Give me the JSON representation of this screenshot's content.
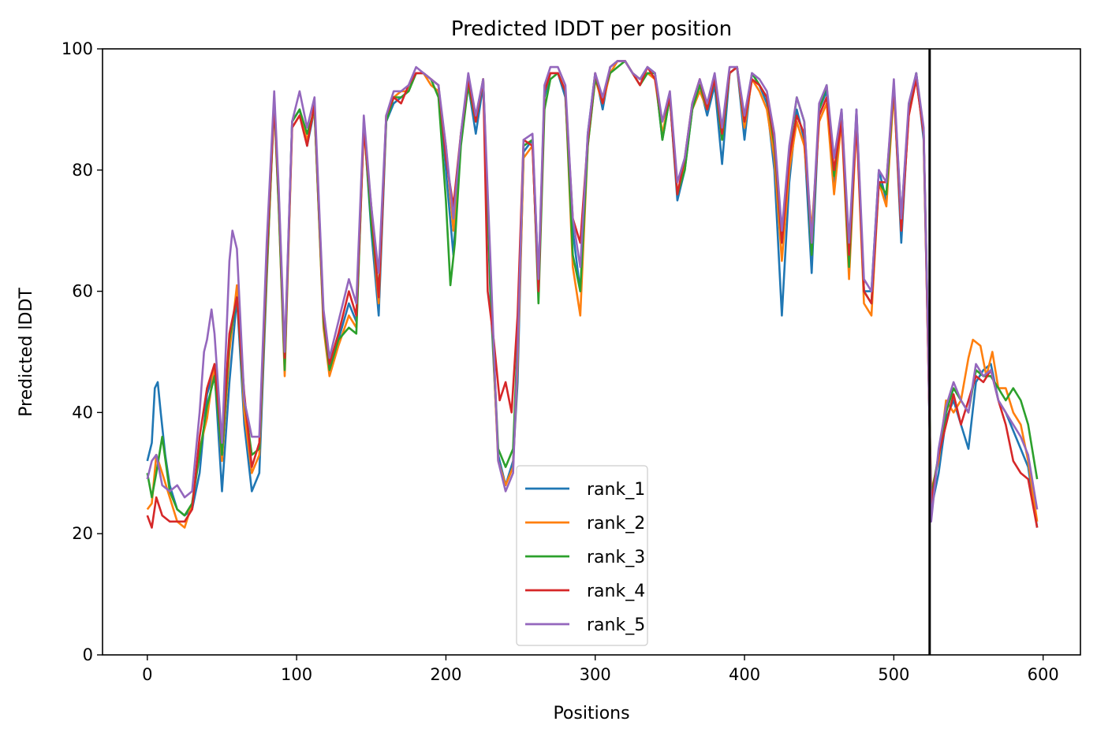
{
  "chart_data": {
    "type": "line",
    "title": "Predicted lDDT per position",
    "xlabel": "Positions",
    "ylabel": "Predicted lDDT",
    "xlim": [
      -30,
      625
    ],
    "ylim": [
      0,
      100
    ],
    "x_ticks": [
      0,
      100,
      200,
      300,
      400,
      500,
      600
    ],
    "y_ticks": [
      0,
      20,
      40,
      60,
      80,
      100
    ],
    "grid": false,
    "legend_position": "bottom-center",
    "vertical_lines": [
      524
    ],
    "series": [
      {
        "name": "rank_1",
        "color": "#1f77b4",
        "x": [
          0,
          3,
          5,
          7,
          9,
          12,
          15,
          20,
          25,
          30,
          35,
          40,
          45,
          50,
          55,
          60,
          65,
          70,
          75,
          80,
          85,
          88,
          92,
          97,
          102,
          107,
          112,
          118,
          122,
          128,
          135,
          140,
          145,
          150,
          155,
          160,
          165,
          170,
          175,
          180,
          185,
          190,
          195,
          200,
          205,
          210,
          215,
          220,
          225,
          230,
          235,
          240,
          245,
          248,
          252,
          258,
          262,
          266,
          270,
          275,
          280,
          285,
          290,
          295,
          300,
          305,
          310,
          315,
          320,
          325,
          330,
          335,
          340,
          345,
          350,
          355,
          360,
          365,
          370,
          375,
          380,
          385,
          390,
          395,
          400,
          405,
          410,
          415,
          420,
          425,
          430,
          435,
          440,
          445,
          450,
          455,
          460,
          465,
          470,
          475,
          480,
          485,
          490,
          495,
          500,
          505,
          510,
          515,
          520,
          523,
          525,
          530,
          535,
          540,
          545,
          550,
          555,
          560,
          565,
          570,
          575,
          580,
          585,
          590,
          596
        ],
        "y": [
          32,
          35,
          44,
          45,
          40,
          33,
          28,
          24,
          23,
          24,
          30,
          43,
          47,
          27,
          45,
          59,
          38,
          27,
          30,
          62,
          92,
          75,
          48,
          88,
          90,
          84,
          90,
          55,
          48,
          52,
          58,
          55,
          88,
          70,
          56,
          88,
          91,
          92,
          93,
          96,
          96,
          95,
          94,
          80,
          66,
          85,
          94,
          86,
          94,
          58,
          33,
          28,
          32,
          45,
          83,
          85,
          62,
          92,
          96,
          96,
          92,
          70,
          60,
          86,
          96,
          90,
          97,
          98,
          98,
          96,
          95,
          97,
          96,
          85,
          92,
          75,
          80,
          90,
          94,
          89,
          94,
          81,
          96,
          97,
          85,
          96,
          94,
          91,
          80,
          56,
          78,
          90,
          85,
          63,
          90,
          93,
          78,
          90,
          65,
          90,
          60,
          60,
          80,
          75,
          94,
          68,
          90,
          96,
          85,
          50,
          24,
          30,
          39,
          42,
          38,
          34,
          45,
          47,
          48,
          42,
          40,
          37,
          34,
          31,
          21
        ]
      },
      {
        "name": "rank_2",
        "color": "#ff7f0e",
        "x": [
          0,
          3,
          6,
          10,
          15,
          20,
          25,
          30,
          35,
          40,
          45,
          50,
          55,
          60,
          65,
          70,
          75,
          80,
          85,
          88,
          92,
          97,
          102,
          107,
          112,
          118,
          122,
          128,
          135,
          140,
          145,
          150,
          155,
          160,
          165,
          170,
          175,
          180,
          185,
          190,
          195,
          200,
          205,
          210,
          215,
          220,
          225,
          230,
          235,
          240,
          245,
          248,
          252,
          258,
          262,
          266,
          270,
          275,
          280,
          285,
          290,
          295,
          300,
          305,
          310,
          315,
          320,
          325,
          330,
          335,
          340,
          345,
          350,
          355,
          360,
          365,
          370,
          375,
          380,
          385,
          390,
          395,
          400,
          405,
          410,
          415,
          420,
          425,
          430,
          435,
          440,
          445,
          450,
          455,
          460,
          465,
          470,
          475,
          480,
          485,
          490,
          495,
          500,
          505,
          510,
          515,
          520,
          523,
          525,
          530,
          535,
          540,
          545,
          550,
          553,
          558,
          562,
          566,
          570,
          575,
          580,
          585,
          590,
          596
        ],
        "y": [
          24,
          25,
          33,
          30,
          26,
          22,
          21,
          25,
          34,
          39,
          48,
          32,
          50,
          61,
          40,
          30,
          33,
          63,
          91,
          74,
          46,
          87,
          89,
          85,
          90,
          54,
          46,
          51,
          56,
          54,
          87,
          72,
          58,
          89,
          92,
          93,
          93,
          96,
          96,
          94,
          93,
          84,
          70,
          86,
          94,
          88,
          95,
          60,
          32,
          28,
          31,
          48,
          82,
          84,
          60,
          93,
          96,
          96,
          93,
          64,
          56,
          84,
          95,
          91,
          96,
          98,
          98,
          96,
          95,
          96,
          95,
          86,
          92,
          76,
          81,
          90,
          93,
          90,
          95,
          85,
          96,
          97,
          87,
          95,
          93,
          90,
          82,
          65,
          80,
          88,
          84,
          70,
          88,
          91,
          76,
          88,
          62,
          88,
          58,
          56,
          78,
          74,
          93,
          70,
          89,
          95,
          86,
          50,
          27,
          32,
          42,
          40,
          42,
          49,
          52,
          51,
          46,
          50,
          44,
          44,
          40,
          38,
          32,
          22
        ]
      },
      {
        "name": "rank_3",
        "color": "#2ca02c",
        "x": [
          0,
          3,
          6,
          10,
          15,
          20,
          25,
          30,
          35,
          40,
          45,
          50,
          55,
          60,
          65,
          70,
          75,
          80,
          85,
          88,
          92,
          97,
          102,
          107,
          112,
          118,
          122,
          128,
          135,
          140,
          145,
          150,
          155,
          160,
          165,
          170,
          175,
          180,
          185,
          190,
          195,
          200,
          203,
          206,
          210,
          215,
          220,
          225,
          230,
          235,
          240,
          245,
          248,
          252,
          258,
          262,
          266,
          270,
          275,
          280,
          285,
          290,
          295,
          300,
          305,
          310,
          315,
          320,
          325,
          330,
          335,
          340,
          345,
          350,
          355,
          360,
          365,
          370,
          375,
          380,
          385,
          390,
          395,
          400,
          405,
          410,
          415,
          420,
          425,
          430,
          435,
          440,
          445,
          450,
          455,
          460,
          465,
          470,
          475,
          480,
          485,
          490,
          495,
          500,
          505,
          510,
          515,
          520,
          523,
          525,
          530,
          535,
          540,
          545,
          550,
          555,
          560,
          565,
          570,
          575,
          580,
          585,
          590,
          596
        ],
        "y": [
          30,
          26,
          30,
          36,
          27,
          24,
          23,
          25,
          33,
          41,
          46,
          33,
          52,
          59,
          42,
          33,
          34,
          64,
          91,
          74,
          47,
          88,
          90,
          86,
          90,
          55,
          47,
          52,
          54,
          53,
          88,
          71,
          60,
          88,
          92,
          92,
          93,
          96,
          96,
          95,
          92,
          75,
          61,
          68,
          84,
          94,
          88,
          95,
          60,
          34,
          31,
          34,
          52,
          84,
          85,
          58,
          90,
          95,
          96,
          93,
          66,
          60,
          84,
          95,
          92,
          96,
          97,
          98,
          96,
          94,
          96,
          96,
          85,
          92,
          76,
          80,
          90,
          94,
          90,
          95,
          85,
          96,
          97,
          88,
          96,
          94,
          92,
          84,
          68,
          83,
          92,
          88,
          66,
          90,
          94,
          79,
          89,
          64,
          89,
          60,
          58,
          78,
          76,
          94,
          72,
          90,
          96,
          86,
          52,
          26,
          33,
          40,
          44,
          42,
          40,
          47,
          46,
          46,
          44,
          42,
          44,
          42,
          38,
          29
        ]
      },
      {
        "name": "rank_4",
        "color": "#d62728",
        "x": [
          0,
          3,
          6,
          10,
          15,
          20,
          25,
          30,
          35,
          40,
          45,
          50,
          55,
          60,
          65,
          70,
          75,
          80,
          85,
          88,
          92,
          97,
          102,
          107,
          112,
          118,
          122,
          128,
          135,
          140,
          145,
          150,
          155,
          160,
          165,
          170,
          175,
          180,
          185,
          190,
          195,
          200,
          205,
          210,
          215,
          220,
          225,
          228,
          232,
          236,
          240,
          244,
          248,
          252,
          258,
          262,
          266,
          270,
          275,
          280,
          285,
          290,
          295,
          300,
          305,
          310,
          315,
          320,
          325,
          330,
          335,
          340,
          345,
          350,
          355,
          360,
          365,
          370,
          375,
          380,
          385,
          390,
          395,
          400,
          405,
          410,
          415,
          420,
          425,
          430,
          435,
          440,
          445,
          450,
          455,
          460,
          465,
          470,
          475,
          480,
          485,
          490,
          495,
          500,
          505,
          510,
          515,
          520,
          523,
          525,
          530,
          535,
          540,
          545,
          550,
          555,
          560,
          565,
          570,
          575,
          580,
          585,
          590,
          596
        ],
        "y": [
          23,
          21,
          26,
          23,
          22,
          22,
          22,
          24,
          36,
          44,
          48,
          35,
          53,
          59,
          43,
          31,
          35,
          66,
          91,
          76,
          49,
          87,
          89,
          84,
          91,
          56,
          48,
          53,
          60,
          56,
          87,
          74,
          59,
          89,
          92,
          91,
          94,
          96,
          96,
          95,
          94,
          82,
          74,
          86,
          95,
          88,
          95,
          60,
          52,
          42,
          45,
          40,
          56,
          85,
          84,
          60,
          93,
          96,
          96,
          93,
          72,
          68,
          85,
          96,
          91,
          97,
          98,
          98,
          96,
          94,
          97,
          95,
          88,
          92,
          76,
          82,
          91,
          95,
          90,
          95,
          86,
          96,
          97,
          88,
          95,
          94,
          92,
          85,
          68,
          82,
          89,
          86,
          68,
          89,
          92,
          80,
          88,
          66,
          88,
          60,
          58,
          78,
          78,
          94,
          70,
          89,
          95,
          86,
          50,
          25,
          33,
          38,
          43,
          38,
          42,
          46,
          45,
          47,
          42,
          38,
          32,
          30,
          29,
          21
        ]
      },
      {
        "name": "rank_5",
        "color": "#9467bd",
        "x": [
          0,
          3,
          6,
          10,
          15,
          20,
          25,
          30,
          35,
          38,
          40,
          43,
          45,
          50,
          55,
          57,
          60,
          65,
          70,
          75,
          80,
          85,
          88,
          92,
          97,
          102,
          107,
          112,
          118,
          122,
          128,
          135,
          140,
          145,
          150,
          155,
          160,
          165,
          170,
          175,
          180,
          185,
          190,
          195,
          200,
          205,
          210,
          215,
          220,
          225,
          230,
          235,
          240,
          245,
          248,
          252,
          258,
          262,
          266,
          270,
          275,
          280,
          285,
          290,
          295,
          300,
          305,
          310,
          315,
          320,
          325,
          330,
          335,
          340,
          345,
          350,
          355,
          360,
          365,
          370,
          375,
          380,
          385,
          390,
          395,
          400,
          405,
          410,
          415,
          420,
          425,
          430,
          435,
          440,
          445,
          450,
          455,
          460,
          465,
          470,
          475,
          480,
          485,
          490,
          495,
          500,
          505,
          510,
          515,
          520,
          523,
          525,
          530,
          535,
          540,
          545,
          550,
          555,
          560,
          565,
          570,
          575,
          580,
          585,
          590,
          596
        ],
        "y": [
          29,
          32,
          33,
          28,
          27,
          28,
          26,
          27,
          40,
          50,
          52,
          57,
          53,
          35,
          65,
          70,
          67,
          42,
          36,
          36,
          68,
          93,
          77,
          50,
          88,
          93,
          87,
          92,
          57,
          49,
          55,
          62,
          58,
          89,
          74,
          63,
          89,
          93,
          93,
          94,
          97,
          96,
          95,
          94,
          84,
          72,
          86,
          96,
          89,
          95,
          64,
          32,
          27,
          30,
          50,
          85,
          86,
          62,
          94,
          97,
          97,
          94,
          72,
          64,
          86,
          96,
          92,
          97,
          98,
          98,
          96,
          95,
          97,
          96,
          88,
          93,
          78,
          82,
          91,
          95,
          91,
          96,
          87,
          97,
          97,
          89,
          96,
          95,
          93,
          86,
          70,
          84,
          92,
          88,
          68,
          91,
          94,
          82,
          90,
          68,
          90,
          62,
          60,
          80,
          78,
          95,
          72,
          91,
          96,
          87,
          52,
          22,
          34,
          41,
          45,
          42,
          40,
          48,
          46,
          47,
          42,
          40,
          38,
          36,
          33,
          24
        ]
      }
    ]
  }
}
